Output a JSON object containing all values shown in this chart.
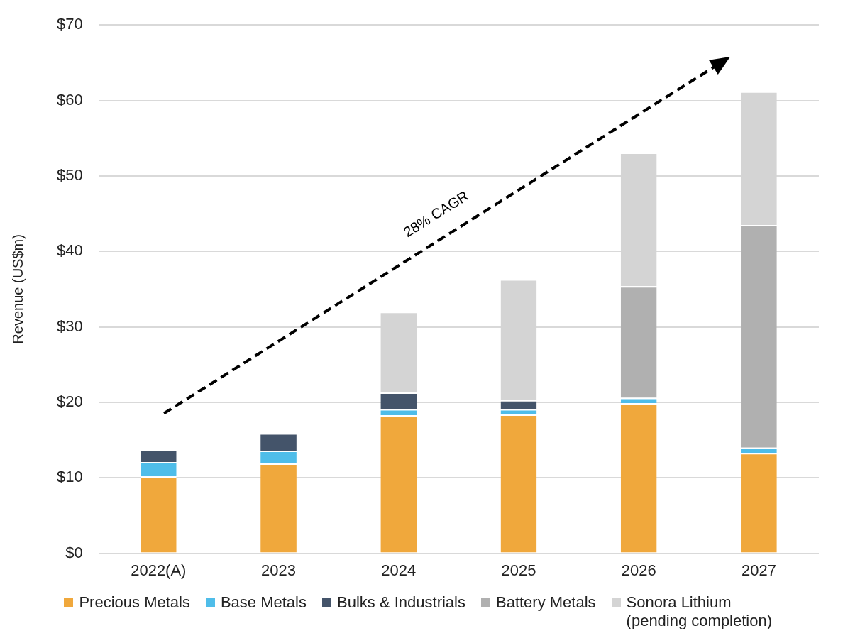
{
  "chart_data": {
    "type": "bar",
    "stacked": true,
    "ylabel": "Revenue (US$m)",
    "categories": [
      "2022(A)",
      "2023",
      "2024",
      "2025",
      "2026",
      "2027"
    ],
    "series": [
      {
        "name": "Precious Metals",
        "color": "#f0a83c",
        "values": [
          10.2,
          11.9,
          18.3,
          18.4,
          19.9,
          13.3
        ]
      },
      {
        "name": "Base Metals",
        "color": "#4fbde9",
        "values": [
          1.9,
          1.7,
          0.8,
          0.7,
          0.7,
          0.7
        ]
      },
      {
        "name": "Bulks & Industrials",
        "color": "#44546a",
        "values": [
          1.6,
          2.3,
          2.2,
          1.2,
          0,
          0
        ]
      },
      {
        "name": "Battery Metals",
        "color": "#b0b0b0",
        "values": [
          0,
          0,
          0,
          0,
          14.8,
          29.5
        ]
      },
      {
        "name": "Sonora Lithium (pending completion)",
        "color": "#d4d4d4",
        "values": [
          0,
          0,
          10.7,
          16.0,
          17.7,
          17.7
        ]
      }
    ],
    "ylim": [
      0,
      70
    ],
    "yticks": [
      {
        "value": 0,
        "label": "$0"
      },
      {
        "value": 10,
        "label": "$10"
      },
      {
        "value": 20,
        "label": "$20"
      },
      {
        "value": 30,
        "label": "$30"
      },
      {
        "value": 40,
        "label": "$40"
      },
      {
        "value": 50,
        "label": "$50"
      },
      {
        "value": 60,
        "label": "$60"
      },
      {
        "value": 70,
        "label": "$70"
      }
    ],
    "grid": "y",
    "legend": "bottom",
    "annotations": [
      "28% CAGR"
    ]
  }
}
